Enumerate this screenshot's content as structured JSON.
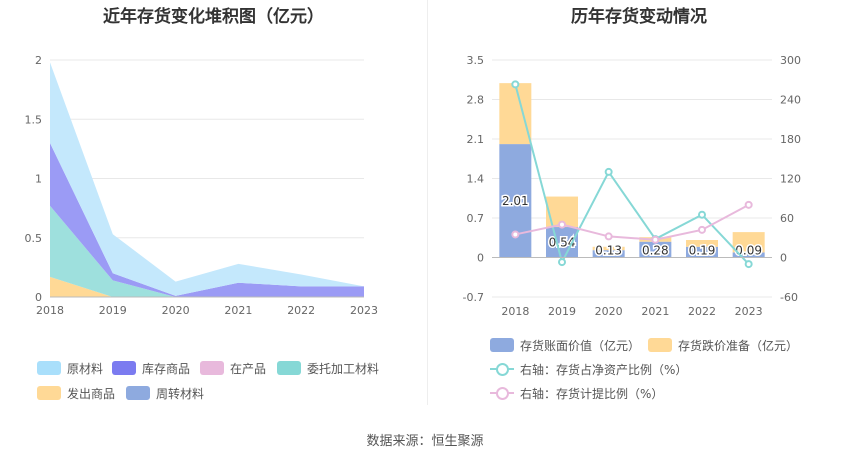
{
  "left_title": "近年存货变化堆积图（亿元）",
  "right_title": "历年存货变动情况",
  "source_text": "数据来源：恒生聚源",
  "chart_data": [
    {
      "type": "area",
      "title": "近年存货变化堆积图（亿元）",
      "categories": [
        "2018",
        "2019",
        "2020",
        "2021",
        "2022",
        "2023"
      ],
      "ylim": [
        0,
        2
      ],
      "yticks": [
        "0",
        "0.5",
        "1",
        "1.5",
        "2"
      ],
      "grid": true,
      "stacked": true,
      "legend_position": "bottom",
      "series": [
        {
          "name": "发出商品",
          "color": "#ffd996",
          "values": [
            0.17,
            0.0,
            0.0,
            0.0,
            0.0,
            0.0
          ]
        },
        {
          "name": "委托加工材料",
          "color": "#9ee0dd",
          "values": [
            0.6,
            0.14,
            0.0,
            0.0,
            0.0,
            0.0
          ]
        },
        {
          "name": "库存商品",
          "color": "#9b9bf5",
          "values": [
            0.53,
            0.06,
            0.01,
            0.12,
            0.09,
            0.09
          ]
        },
        {
          "name": "原材料",
          "color": "#c4e8fc",
          "values": [
            0.68,
            0.33,
            0.12,
            0.16,
            0.1,
            0.0
          ]
        },
        {
          "name": "在产品",
          "color": "#e8b9dc",
          "values": [
            0.0,
            0.0,
            0.0,
            0.0,
            0.0,
            0.0
          ]
        },
        {
          "name": "周转材料",
          "color": "#8eaadf",
          "values": [
            0.0,
            0.0,
            0.0,
            0.0,
            0.0,
            0.0
          ]
        }
      ],
      "legend_items": [
        {
          "name": "原材料",
          "color": "#a9dffb"
        },
        {
          "name": "库存商品",
          "color": "#7b7bf0"
        },
        {
          "name": "在产品",
          "color": "#e8b9dc"
        },
        {
          "name": "委托加工材料",
          "color": "#86d8d6"
        },
        {
          "name": "发出商品",
          "color": "#ffd996"
        },
        {
          "name": "周转材料",
          "color": "#8eaadf"
        }
      ]
    },
    {
      "type": "bar",
      "title": "历年存货变动情况",
      "categories": [
        "2018",
        "2019",
        "2020",
        "2021",
        "2022",
        "2023"
      ],
      "ylim": [
        -0.7,
        3.5
      ],
      "yticks": [
        "-0.7",
        "0",
        "0.7",
        "1.4",
        "2.1",
        "2.8",
        "3.5"
      ],
      "y2lim": [
        -60,
        300
      ],
      "y2ticks": [
        "-60",
        "0",
        "60",
        "120",
        "180",
        "240",
        "300"
      ],
      "grid": true,
      "legend_position": "bottom",
      "bar_labels": [
        "2.01",
        "0.54",
        "0.13",
        "0.28",
        "0.19",
        "0.09"
      ],
      "series": [
        {
          "name": "存货账面价值（亿元）",
          "type": "bar",
          "axis": "left",
          "color": "#8eaadf",
          "values": [
            2.01,
            0.54,
            0.13,
            0.28,
            0.19,
            0.09
          ]
        },
        {
          "name": "存货跌价准备（亿元）",
          "type": "bar",
          "axis": "left",
          "color": "#ffd996",
          "values": [
            1.08,
            0.54,
            0.06,
            0.08,
            0.12,
            0.36
          ]
        },
        {
          "name": "右轴：存货占净资产比例（%）",
          "type": "line",
          "axis": "right",
          "color": "#86d8d6",
          "values": [
            263,
            -7,
            130,
            28,
            65,
            -10
          ]
        },
        {
          "name": "右轴：存货计提比例（%）",
          "type": "line",
          "axis": "right",
          "color": "#e8b9dc",
          "values": [
            35,
            50,
            32,
            27,
            42,
            80
          ]
        }
      ]
    }
  ]
}
